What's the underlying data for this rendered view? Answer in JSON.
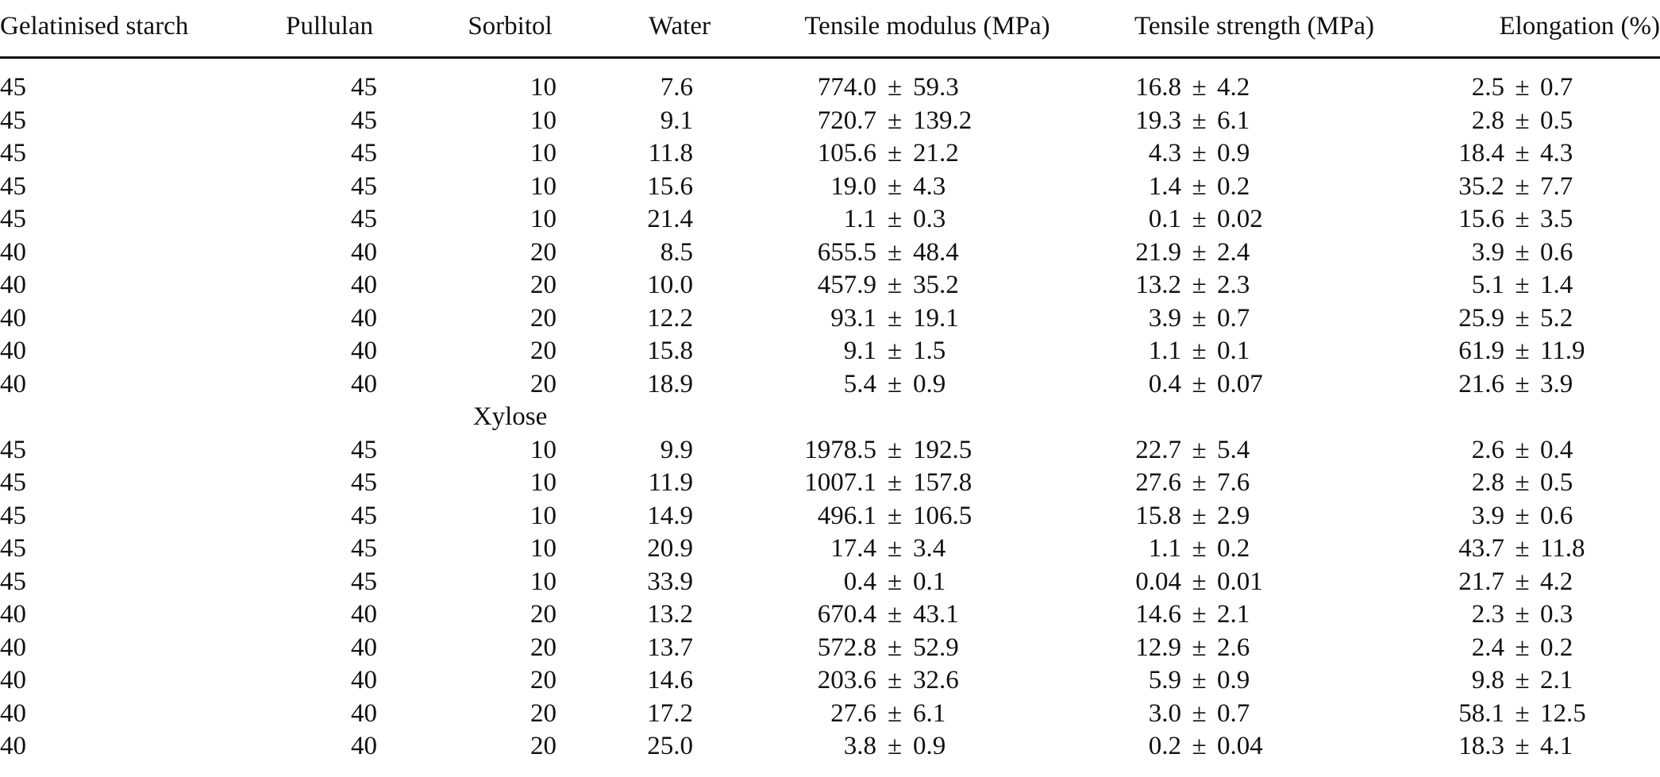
{
  "table": {
    "headers": [
      "Gelatinised starch",
      "Pullulan",
      "Sorbitol",
      "Water",
      "Tensile modulus (MPa)",
      "Tensile strength (MPa)",
      "Elongation (%)"
    ],
    "pm": "±",
    "sections": [
      {
        "label": "",
        "rows": [
          {
            "starch": "45",
            "pullulan": "45",
            "plasticiser": "10",
            "water": "7.6",
            "modulus": {
              "mean": "774.0",
              "sd": "59.3"
            },
            "strength": {
              "mean": "16.8",
              "sd": "4.2"
            },
            "elongation": {
              "mean": "2.5",
              "sd": "0.7"
            }
          },
          {
            "starch": "45",
            "pullulan": "45",
            "plasticiser": "10",
            "water": "9.1",
            "modulus": {
              "mean": "720.7",
              "sd": "139.2"
            },
            "strength": {
              "mean": "19.3",
              "sd": "6.1"
            },
            "elongation": {
              "mean": "2.8",
              "sd": "0.5"
            }
          },
          {
            "starch": "45",
            "pullulan": "45",
            "plasticiser": "10",
            "water": "11.8",
            "modulus": {
              "mean": "105.6",
              "sd": "21.2"
            },
            "strength": {
              "mean": "4.3",
              "sd": "0.9"
            },
            "elongation": {
              "mean": "18.4",
              "sd": "4.3"
            }
          },
          {
            "starch": "45",
            "pullulan": "45",
            "plasticiser": "10",
            "water": "15.6",
            "modulus": {
              "mean": "19.0",
              "sd": "4.3"
            },
            "strength": {
              "mean": "1.4",
              "sd": "0.2"
            },
            "elongation": {
              "mean": "35.2",
              "sd": "7.7"
            }
          },
          {
            "starch": "45",
            "pullulan": "45",
            "plasticiser": "10",
            "water": "21.4",
            "modulus": {
              "mean": "1.1",
              "sd": "0.3"
            },
            "strength": {
              "mean": "0.1",
              "sd": "0.02"
            },
            "elongation": {
              "mean": "15.6",
              "sd": "3.5"
            }
          },
          {
            "starch": "40",
            "pullulan": "40",
            "plasticiser": "20",
            "water": "8.5",
            "modulus": {
              "mean": "655.5",
              "sd": "48.4"
            },
            "strength": {
              "mean": "21.9",
              "sd": "2.4"
            },
            "elongation": {
              "mean": "3.9",
              "sd": "0.6"
            }
          },
          {
            "starch": "40",
            "pullulan": "40",
            "plasticiser": "20",
            "water": "10.0",
            "modulus": {
              "mean": "457.9",
              "sd": "35.2"
            },
            "strength": {
              "mean": "13.2",
              "sd": "2.3"
            },
            "elongation": {
              "mean": "5.1",
              "sd": "1.4"
            }
          },
          {
            "starch": "40",
            "pullulan": "40",
            "plasticiser": "20",
            "water": "12.2",
            "modulus": {
              "mean": "93.1",
              "sd": "19.1"
            },
            "strength": {
              "mean": "3.9",
              "sd": "0.7"
            },
            "elongation": {
              "mean": "25.9",
              "sd": "5.2"
            }
          },
          {
            "starch": "40",
            "pullulan": "40",
            "plasticiser": "20",
            "water": "15.8",
            "modulus": {
              "mean": "9.1",
              "sd": "1.5"
            },
            "strength": {
              "mean": "1.1",
              "sd": "0.1"
            },
            "elongation": {
              "mean": "61.9",
              "sd": "11.9"
            }
          },
          {
            "starch": "40",
            "pullulan": "40",
            "plasticiser": "20",
            "water": "18.9",
            "modulus": {
              "mean": "5.4",
              "sd": "0.9"
            },
            "strength": {
              "mean": "0.4",
              "sd": "0.07"
            },
            "elongation": {
              "mean": "21.6",
              "sd": "3.9"
            }
          }
        ]
      },
      {
        "label": "Xylose",
        "rows": [
          {
            "starch": "45",
            "pullulan": "45",
            "plasticiser": "10",
            "water": "9.9",
            "modulus": {
              "mean": "1978.5",
              "sd": "192.5"
            },
            "strength": {
              "mean": "22.7",
              "sd": "5.4"
            },
            "elongation": {
              "mean": "2.6",
              "sd": "0.4"
            }
          },
          {
            "starch": "45",
            "pullulan": "45",
            "plasticiser": "10",
            "water": "11.9",
            "modulus": {
              "mean": "1007.1",
              "sd": "157.8"
            },
            "strength": {
              "mean": "27.6",
              "sd": "7.6"
            },
            "elongation": {
              "mean": "2.8",
              "sd": "0.5"
            }
          },
          {
            "starch": "45",
            "pullulan": "45",
            "plasticiser": "10",
            "water": "14.9",
            "modulus": {
              "mean": "496.1",
              "sd": "106.5"
            },
            "strength": {
              "mean": "15.8",
              "sd": "2.9"
            },
            "elongation": {
              "mean": "3.9",
              "sd": "0.6"
            }
          },
          {
            "starch": "45",
            "pullulan": "45",
            "plasticiser": "10",
            "water": "20.9",
            "modulus": {
              "mean": "17.4",
              "sd": "3.4"
            },
            "strength": {
              "mean": "1.1",
              "sd": "0.2"
            },
            "elongation": {
              "mean": "43.7",
              "sd": "11.8"
            }
          },
          {
            "starch": "45",
            "pullulan": "45",
            "plasticiser": "10",
            "water": "33.9",
            "modulus": {
              "mean": "0.4",
              "sd": "0.1"
            },
            "strength": {
              "mean": "0.04",
              "sd": "0.01"
            },
            "elongation": {
              "mean": "21.7",
              "sd": "4.2"
            }
          },
          {
            "starch": "40",
            "pullulan": "40",
            "plasticiser": "20",
            "water": "13.2",
            "modulus": {
              "mean": "670.4",
              "sd": "43.1"
            },
            "strength": {
              "mean": "14.6",
              "sd": "2.1"
            },
            "elongation": {
              "mean": "2.3",
              "sd": "0.3"
            }
          },
          {
            "starch": "40",
            "pullulan": "40",
            "plasticiser": "20",
            "water": "13.7",
            "modulus": {
              "mean": "572.8",
              "sd": "52.9"
            },
            "strength": {
              "mean": "12.9",
              "sd": "2.6"
            },
            "elongation": {
              "mean": "2.4",
              "sd": "0.2"
            }
          },
          {
            "starch": "40",
            "pullulan": "40",
            "plasticiser": "20",
            "water": "14.6",
            "modulus": {
              "mean": "203.6",
              "sd": "32.6"
            },
            "strength": {
              "mean": "5.9",
              "sd": "0.9"
            },
            "elongation": {
              "mean": "9.8",
              "sd": "2.1"
            }
          },
          {
            "starch": "40",
            "pullulan": "40",
            "plasticiser": "20",
            "water": "17.2",
            "modulus": {
              "mean": "27.6",
              "sd": "6.1"
            },
            "strength": {
              "mean": "3.0",
              "sd": "0.7"
            },
            "elongation": {
              "mean": "58.1",
              "sd": "12.5"
            }
          },
          {
            "starch": "40",
            "pullulan": "40",
            "plasticiser": "20",
            "water": "25.0",
            "modulus": {
              "mean": "3.8",
              "sd": "0.9"
            },
            "strength": {
              "mean": "0.2",
              "sd": "0.04"
            },
            "elongation": {
              "mean": "18.3",
              "sd": "4.1"
            }
          }
        ]
      }
    ]
  }
}
